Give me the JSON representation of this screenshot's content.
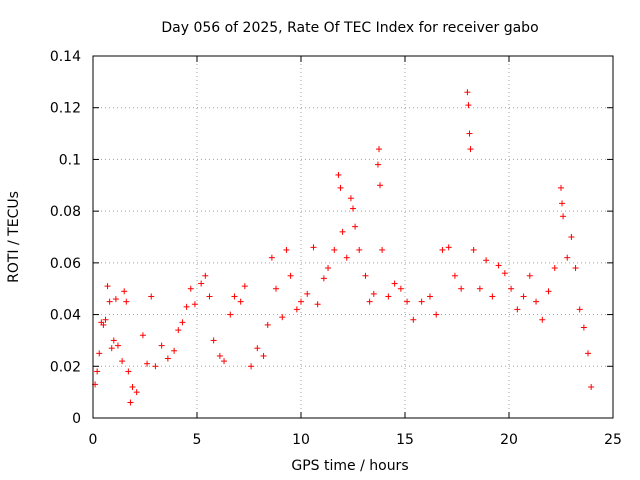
{
  "chart_data": {
    "type": "scatter",
    "title": "Day 056 of 2025, Rate Of TEC Index for receiver gabo",
    "xlabel": "GPS time / hours",
    "ylabel": "ROTI / TECUs",
    "xlim": [
      0,
      25
    ],
    "ylim": [
      0,
      0.14
    ],
    "x_ticks": [
      0,
      5,
      10,
      15,
      20,
      25
    ],
    "y_ticks": [
      0,
      0.02,
      0.04,
      0.06,
      0.08,
      0.1,
      0.12,
      0.14
    ],
    "x_tick_labels": [
      "0",
      "5",
      "10",
      "15",
      "20",
      "25"
    ],
    "y_tick_labels": [
      "0",
      "0.02",
      "0.04",
      "0.06",
      "0.08",
      "0.1",
      "0.12",
      "0.14"
    ],
    "grid": true,
    "marker": "+",
    "series_color": "#ff0000",
    "series": [
      {
        "name": "ROTI",
        "points": [
          [
            0.1,
            0.013
          ],
          [
            0.2,
            0.018
          ],
          [
            0.3,
            0.025
          ],
          [
            0.4,
            0.037
          ],
          [
            0.5,
            0.036
          ],
          [
            0.6,
            0.038
          ],
          [
            0.7,
            0.051
          ],
          [
            0.8,
            0.045
          ],
          [
            0.9,
            0.027
          ],
          [
            1.0,
            0.03
          ],
          [
            1.1,
            0.046
          ],
          [
            1.2,
            0.028
          ],
          [
            1.4,
            0.022
          ],
          [
            1.5,
            0.049
          ],
          [
            1.6,
            0.045
          ],
          [
            1.7,
            0.018
          ],
          [
            1.8,
            0.006
          ],
          [
            1.9,
            0.012
          ],
          [
            2.1,
            0.01
          ],
          [
            2.4,
            0.032
          ],
          [
            2.6,
            0.021
          ],
          [
            2.8,
            0.047
          ],
          [
            3.0,
            0.02
          ],
          [
            3.3,
            0.028
          ],
          [
            3.6,
            0.023
          ],
          [
            3.9,
            0.026
          ],
          [
            4.1,
            0.034
          ],
          [
            4.3,
            0.037
          ],
          [
            4.5,
            0.043
          ],
          [
            4.7,
            0.05
          ],
          [
            4.9,
            0.044
          ],
          [
            5.2,
            0.052
          ],
          [
            5.4,
            0.055
          ],
          [
            5.6,
            0.047
          ],
          [
            5.8,
            0.03
          ],
          [
            6.1,
            0.024
          ],
          [
            6.3,
            0.022
          ],
          [
            6.6,
            0.04
          ],
          [
            6.8,
            0.047
          ],
          [
            7.1,
            0.045
          ],
          [
            7.3,
            0.051
          ],
          [
            7.6,
            0.02
          ],
          [
            7.9,
            0.027
          ],
          [
            8.2,
            0.024
          ],
          [
            8.4,
            0.036
          ],
          [
            8.6,
            0.062
          ],
          [
            8.8,
            0.05
          ],
          [
            9.1,
            0.039
          ],
          [
            9.3,
            0.065
          ],
          [
            9.5,
            0.055
          ],
          [
            9.8,
            0.042
          ],
          [
            10.0,
            0.045
          ],
          [
            10.3,
            0.048
          ],
          [
            10.6,
            0.066
          ],
          [
            10.8,
            0.044
          ],
          [
            11.1,
            0.054
          ],
          [
            11.3,
            0.058
          ],
          [
            11.6,
            0.065
          ],
          [
            11.8,
            0.094
          ],
          [
            11.9,
            0.089
          ],
          [
            12.0,
            0.072
          ],
          [
            12.2,
            0.062
          ],
          [
            12.4,
            0.085
          ],
          [
            12.5,
            0.081
          ],
          [
            12.6,
            0.074
          ],
          [
            12.8,
            0.065
          ],
          [
            13.1,
            0.055
          ],
          [
            13.3,
            0.045
          ],
          [
            13.5,
            0.048
          ],
          [
            13.7,
            0.098
          ],
          [
            13.75,
            0.104
          ],
          [
            13.8,
            0.09
          ],
          [
            13.9,
            0.065
          ],
          [
            14.2,
            0.047
          ],
          [
            14.5,
            0.052
          ],
          [
            14.8,
            0.05
          ],
          [
            15.1,
            0.045
          ],
          [
            15.4,
            0.038
          ],
          [
            15.8,
            0.045
          ],
          [
            16.2,
            0.047
          ],
          [
            16.5,
            0.04
          ],
          [
            16.8,
            0.065
          ],
          [
            17.1,
            0.066
          ],
          [
            17.4,
            0.055
          ],
          [
            17.7,
            0.05
          ],
          [
            18.0,
            0.126
          ],
          [
            18.05,
            0.121
          ],
          [
            18.1,
            0.11
          ],
          [
            18.15,
            0.104
          ],
          [
            18.3,
            0.065
          ],
          [
            18.6,
            0.05
          ],
          [
            18.9,
            0.061
          ],
          [
            19.2,
            0.047
          ],
          [
            19.5,
            0.059
          ],
          [
            19.8,
            0.056
          ],
          [
            20.1,
            0.05
          ],
          [
            20.4,
            0.042
          ],
          [
            20.7,
            0.047
          ],
          [
            21.0,
            0.055
          ],
          [
            21.3,
            0.045
          ],
          [
            21.6,
            0.038
          ],
          [
            21.9,
            0.049
          ],
          [
            22.2,
            0.058
          ],
          [
            22.5,
            0.089
          ],
          [
            22.55,
            0.083
          ],
          [
            22.6,
            0.078
          ],
          [
            22.8,
            0.062
          ],
          [
            23.0,
            0.07
          ],
          [
            23.2,
            0.058
          ],
          [
            23.4,
            0.042
          ],
          [
            23.6,
            0.035
          ],
          [
            23.8,
            0.025
          ],
          [
            23.95,
            0.012
          ]
        ]
      }
    ]
  }
}
